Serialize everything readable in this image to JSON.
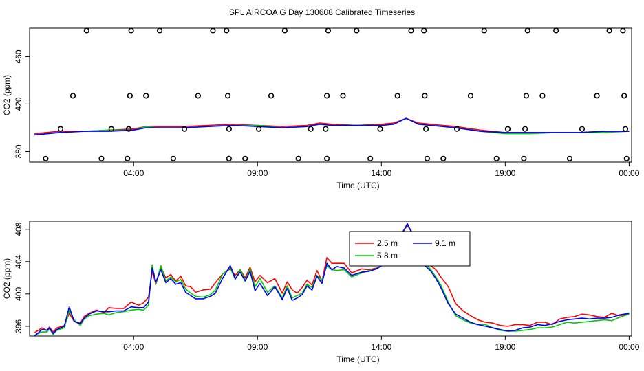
{
  "title": "SPL AIRCOA G  Day 130608  Calibrated Timeseries",
  "chart_data": [
    {
      "type": "scatter",
      "xlabel": "Time (UTC)",
      "ylabel": "CO2 (ppm)",
      "x_unit": "hours UTC",
      "xlim": [
        -0.2,
        24.1
      ],
      "ylim": [
        371,
        484
      ],
      "x_ticks": [
        {
          "v": 4,
          "label": "04:00"
        },
        {
          "v": 9,
          "label": "09:00"
        },
        {
          "v": 14,
          "label": "14:00"
        },
        {
          "v": 19,
          "label": "19:00"
        },
        {
          "v": 24,
          "label": "00:00"
        }
      ],
      "y_ticks": [
        {
          "v": 380,
          "label": "380"
        },
        {
          "v": 420,
          "label": "420"
        },
        {
          "v": 460,
          "label": "460"
        }
      ],
      "points": [
        {
          "x": 2.1,
          "y": 482
        },
        {
          "x": 3.9,
          "y": 482
        },
        {
          "x": 5.05,
          "y": 482
        },
        {
          "x": 7.2,
          "y": 482
        },
        {
          "x": 7.75,
          "y": 482
        },
        {
          "x": 10.1,
          "y": 482
        },
        {
          "x": 11.85,
          "y": 482
        },
        {
          "x": 13.0,
          "y": 482
        },
        {
          "x": 15.2,
          "y": 482
        },
        {
          "x": 15.72,
          "y": 482
        },
        {
          "x": 18.15,
          "y": 482
        },
        {
          "x": 19.9,
          "y": 482
        },
        {
          "x": 21.05,
          "y": 482
        },
        {
          "x": 23.2,
          "y": 482
        },
        {
          "x": 23.75,
          "y": 482
        },
        {
          "x": 1.55,
          "y": 427
        },
        {
          "x": 3.85,
          "y": 427
        },
        {
          "x": 4.5,
          "y": 427
        },
        {
          "x": 6.6,
          "y": 427
        },
        {
          "x": 7.8,
          "y": 427
        },
        {
          "x": 9.55,
          "y": 427
        },
        {
          "x": 11.8,
          "y": 427
        },
        {
          "x": 12.45,
          "y": 427
        },
        {
          "x": 14.65,
          "y": 427
        },
        {
          "x": 15.75,
          "y": 427
        },
        {
          "x": 17.6,
          "y": 427
        },
        {
          "x": 19.85,
          "y": 427
        },
        {
          "x": 20.5,
          "y": 427
        },
        {
          "x": 22.7,
          "y": 427
        },
        {
          "x": 23.8,
          "y": 427
        },
        {
          "x": 1.05,
          "y": 399
        },
        {
          "x": 3.1,
          "y": 399
        },
        {
          "x": 3.8,
          "y": 399
        },
        {
          "x": 6.05,
          "y": 399
        },
        {
          "x": 7.85,
          "y": 399
        },
        {
          "x": 9.05,
          "y": 399
        },
        {
          "x": 11.15,
          "y": 399
        },
        {
          "x": 11.75,
          "y": 399
        },
        {
          "x": 13.95,
          "y": 399
        },
        {
          "x": 15.8,
          "y": 399
        },
        {
          "x": 17.05,
          "y": 399
        },
        {
          "x": 19.1,
          "y": 399
        },
        {
          "x": 19.8,
          "y": 399
        },
        {
          "x": 22.1,
          "y": 399
        },
        {
          "x": 23.85,
          "y": 399
        },
        {
          "x": 0.45,
          "y": 374
        },
        {
          "x": 2.7,
          "y": 374
        },
        {
          "x": 3.75,
          "y": 374
        },
        {
          "x": 5.6,
          "y": 374
        },
        {
          "x": 7.85,
          "y": 374
        },
        {
          "x": 8.5,
          "y": 374
        },
        {
          "x": 10.65,
          "y": 374
        },
        {
          "x": 11.8,
          "y": 374
        },
        {
          "x": 13.55,
          "y": 374
        },
        {
          "x": 15.85,
          "y": 374
        },
        {
          "x": 16.5,
          "y": 374
        },
        {
          "x": 18.65,
          "y": 374
        },
        {
          "x": 19.75,
          "y": 374
        },
        {
          "x": 21.6,
          "y": 374
        },
        {
          "x": 23.9,
          "y": 374
        }
      ],
      "series": [
        {
          "color": "#ff0000",
          "x": [
            0,
            1,
            2,
            3,
            4,
            4.5,
            5,
            6,
            7,
            8,
            9,
            10,
            11,
            11.5,
            12,
            13,
            14,
            14.5,
            15,
            15.5,
            16,
            17,
            18,
            19,
            20,
            21,
            22,
            23,
            24
          ],
          "y": [
            395,
            397,
            397,
            398,
            399,
            401,
            401,
            401,
            402,
            403,
            402,
            401,
            402,
            404,
            403,
            402,
            403,
            404,
            408,
            404,
            403,
            401,
            398,
            396,
            396,
            396,
            396,
            397,
            397
          ]
        },
        {
          "color": "#00cc00",
          "x": [
            0,
            1,
            2,
            3,
            4,
            4.5,
            5,
            6,
            7,
            8,
            9,
            10,
            11,
            11.5,
            12,
            13,
            14,
            14.5,
            15,
            15.5,
            16,
            17,
            18,
            19,
            20,
            21,
            22,
            23,
            24
          ],
          "y": [
            394,
            396,
            397,
            398,
            398,
            401,
            400,
            400,
            401,
            402,
            402,
            400,
            401,
            403,
            402,
            402,
            402,
            403,
            408,
            403,
            402,
            400,
            397,
            395,
            395,
            396,
            396,
            396,
            397
          ]
        },
        {
          "color": "#0000ff",
          "x": [
            0,
            1,
            2,
            3,
            4,
            4.5,
            5,
            6,
            7,
            8,
            9,
            10,
            11,
            11.5,
            12,
            13,
            14,
            14.5,
            15,
            15.5,
            16,
            17,
            18,
            19,
            20,
            21,
            22,
            23,
            24
          ],
          "y": [
            394,
            396,
            397,
            397,
            398,
            400,
            400,
            400,
            401,
            402,
            401,
            400,
            401,
            403,
            402,
            402,
            402,
            403,
            408,
            403,
            402,
            400,
            397,
            396,
            396,
            396,
            396,
            397,
            397
          ]
        }
      ]
    },
    {
      "type": "line",
      "xlabel": "Time (UTC)",
      "ylabel": "CO2 (ppm)",
      "x_unit": "hours UTC",
      "xlim": [
        -0.2,
        24.1
      ],
      "ylim": [
        394.8,
        409.0
      ],
      "x_ticks": [
        {
          "v": 4,
          "label": "04:00"
        },
        {
          "v": 9,
          "label": "09:00"
        },
        {
          "v": 14,
          "label": "14:00"
        },
        {
          "v": 19,
          "label": "19:00"
        },
        {
          "v": 24,
          "label": "00:00"
        }
      ],
      "y_ticks": [
        {
          "v": 396,
          "label": "396"
        },
        {
          "v": 400,
          "label": "400"
        },
        {
          "v": 404,
          "label": "404"
        },
        {
          "v": 408,
          "label": "408"
        }
      ],
      "legend": {
        "position": "top-center"
      },
      "series": [
        {
          "name": "2.5 m",
          "color": "#ff0000",
          "x": [
            0,
            0.3,
            0.5,
            0.6,
            0.75,
            0.9,
            1.2,
            1.4,
            1.6,
            1.85,
            2,
            2.2,
            2.5,
            2.8,
            3.0,
            3.3,
            3.6,
            3.9,
            4.2,
            4.4,
            4.6,
            4.75,
            4.9,
            5.1,
            5.3,
            5.5,
            5.7,
            5.9,
            6.1,
            6.3,
            6.5,
            6.8,
            7.1,
            7.3,
            7.6,
            7.9,
            8.1,
            8.3,
            8.5,
            8.7,
            8.9,
            9.1,
            9.4,
            9.7,
            10.0,
            10.2,
            10.4,
            10.6,
            10.8,
            11.0,
            11.2,
            11.4,
            11.6,
            11.8,
            12.0,
            12.2,
            12.5,
            12.8,
            13.2,
            13.5,
            13.8,
            14.1,
            14.4,
            14.7,
            14.9,
            15.05,
            15.2,
            15.4,
            15.6,
            15.8,
            16.0,
            16.2,
            16.4,
            16.7,
            17.0,
            17.3,
            17.6,
            17.9,
            18.2,
            18.5,
            18.8,
            19.1,
            19.4,
            19.7,
            20.0,
            20.3,
            20.6,
            20.9,
            21.2,
            21.5,
            21.8,
            22.1,
            22.4,
            22.7,
            23.0,
            23.3,
            23.6,
            24.0
          ],
          "y": [
            395.2,
            395.8,
            395.5,
            395.9,
            395.3,
            395.8,
            396.1,
            397.6,
            396.6,
            396.4,
            397.2,
            397.6,
            398.0,
            397.7,
            398.3,
            398.2,
            398.2,
            399.0,
            398.6,
            398.9,
            399.6,
            402.8,
            401.2,
            403.3,
            402.0,
            402.4,
            401.6,
            402.2,
            401.0,
            400.9,
            400.2,
            400.5,
            400.6,
            401.4,
            402.5,
            403.1,
            402.3,
            403.0,
            402.0,
            403.3,
            401.5,
            402.3,
            401.4,
            401.9,
            400.1,
            401.5,
            400.5,
            400.1,
            400.8,
            401.7,
            401.1,
            402.9,
            401.6,
            404.5,
            403.8,
            403.8,
            403.8,
            402.6,
            403.1,
            403.0,
            403.2,
            403.6,
            405.1,
            406.8,
            407.9,
            408.4,
            407.9,
            405.1,
            404.3,
            403.5,
            403.5,
            403.0,
            402.1,
            400.9,
            398.8,
            397.9,
            397.3,
            396.8,
            396.5,
            396.4,
            396.1,
            396.0,
            396.2,
            396.2,
            396.1,
            396.5,
            396.5,
            396.2,
            396.9,
            397.1,
            397.2,
            397.5,
            397.4,
            397.2,
            397.1,
            397.6,
            397.3,
            397.5
          ]
        },
        {
          "name": "5.8 m",
          "color": "#00cc00",
          "x": [
            0,
            0.3,
            0.5,
            0.6,
            0.75,
            0.9,
            1.2,
            1.4,
            1.6,
            1.85,
            2,
            2.2,
            2.5,
            2.8,
            3.0,
            3.3,
            3.6,
            3.9,
            4.2,
            4.4,
            4.6,
            4.75,
            4.9,
            5.1,
            5.3,
            5.5,
            5.7,
            5.9,
            6.1,
            6.3,
            6.5,
            6.8,
            7.1,
            7.3,
            7.6,
            7.9,
            8.1,
            8.3,
            8.5,
            8.7,
            8.9,
            9.1,
            9.4,
            9.7,
            10.0,
            10.2,
            10.4,
            10.6,
            10.8,
            11.0,
            11.2,
            11.4,
            11.6,
            11.8,
            12.0,
            12.2,
            12.5,
            12.8,
            13.2,
            13.5,
            13.8,
            14.1,
            14.4,
            14.7,
            14.9,
            15.05,
            15.2,
            15.4,
            15.6,
            15.8,
            16.0,
            16.2,
            16.4,
            16.7,
            17.0,
            17.3,
            17.6,
            17.9,
            18.2,
            18.5,
            18.8,
            19.1,
            19.4,
            19.7,
            20.0,
            20.3,
            20.6,
            20.9,
            21.2,
            21.5,
            21.8,
            22.1,
            22.4,
            22.7,
            23.0,
            23.3,
            23.6,
            24.0
          ],
          "y": [
            394.9,
            395.3,
            395.3,
            395.7,
            395.0,
            395.5,
            395.8,
            397.9,
            396.8,
            396.1,
            396.9,
            397.3,
            397.5,
            397.6,
            397.4,
            397.7,
            397.8,
            398.0,
            398.1,
            398.0,
            398.6,
            403.6,
            401.3,
            403.5,
            401.6,
            402.1,
            401.5,
            401.8,
            400.6,
            400.1,
            399.7,
            399.6,
            399.9,
            400.5,
            402.5,
            403.2,
            401.8,
            403.0,
            401.7,
            403.1,
            400.9,
            401.9,
            400.2,
            401.0,
            399.5,
            401.0,
            399.5,
            399.8,
            400.1,
            401.2,
            400.8,
            402.3,
            401.7,
            403.5,
            403.0,
            402.9,
            403.0,
            402.1,
            402.6,
            402.9,
            403.1,
            403.8,
            405.2,
            406.5,
            407.9,
            408.6,
            407.8,
            404.4,
            403.6,
            403.7,
            403.0,
            402.1,
            401.1,
            399.0,
            397.3,
            396.8,
            396.4,
            396.2,
            396.2,
            395.8,
            395.5,
            395.4,
            395.4,
            395.5,
            395.6,
            395.8,
            395.8,
            395.9,
            396.2,
            396.5,
            396.4,
            396.5,
            396.6,
            396.7,
            396.8,
            396.7,
            397.1,
            397.5
          ]
        },
        {
          "name": "9.1 m",
          "color": "#0000ff",
          "x": [
            0,
            0.3,
            0.5,
            0.6,
            0.75,
            0.9,
            1.2,
            1.4,
            1.6,
            1.85,
            2,
            2.2,
            2.5,
            2.8,
            3.0,
            3.3,
            3.6,
            3.9,
            4.2,
            4.4,
            4.6,
            4.75,
            4.9,
            5.1,
            5.3,
            5.5,
            5.7,
            5.9,
            6.1,
            6.3,
            6.5,
            6.8,
            7.1,
            7.3,
            7.6,
            7.9,
            8.1,
            8.3,
            8.5,
            8.7,
            8.9,
            9.1,
            9.4,
            9.7,
            10.0,
            10.2,
            10.4,
            10.6,
            10.8,
            11.0,
            11.2,
            11.4,
            11.6,
            11.8,
            12.0,
            12.2,
            12.5,
            12.8,
            13.2,
            13.5,
            13.8,
            14.1,
            14.4,
            14.7,
            14.9,
            15.05,
            15.2,
            15.4,
            15.6,
            15.8,
            16.0,
            16.2,
            16.4,
            16.7,
            17.0,
            17.3,
            17.6,
            17.9,
            18.2,
            18.5,
            18.8,
            19.1,
            19.4,
            19.7,
            20.0,
            20.3,
            20.6,
            20.9,
            21.2,
            21.5,
            21.8,
            22.1,
            22.4,
            22.7,
            23.0,
            23.3,
            23.6,
            24.0
          ],
          "y": [
            394.8,
            395.6,
            395.5,
            395.8,
            395.1,
            395.6,
            396.0,
            398.4,
            396.6,
            396.3,
            397.0,
            397.5,
            397.9,
            397.8,
            397.8,
            397.9,
            397.9,
            398.4,
            398.3,
            398.3,
            399.0,
            403.2,
            401.5,
            403.0,
            401.4,
            401.9,
            401.2,
            401.4,
            400.2,
            399.8,
            399.4,
            399.4,
            399.7,
            400.1,
            402.0,
            403.5,
            401.9,
            402.7,
            401.6,
            402.8,
            400.4,
            401.3,
            399.8,
            400.9,
            399.3,
            400.7,
            399.2,
            399.5,
            399.9,
            401.0,
            400.5,
            402.2,
            401.3,
            403.8,
            403.0,
            403.4,
            403.2,
            402.3,
            402.7,
            402.8,
            403.1,
            403.7,
            405.0,
            406.8,
            407.8,
            408.7,
            407.7,
            404.6,
            403.8,
            403.4,
            402.8,
            401.9,
            400.8,
            398.8,
            397.5,
            397.0,
            396.5,
            396.2,
            396.0,
            395.8,
            395.6,
            395.4,
            395.5,
            395.8,
            395.9,
            396.2,
            396.1,
            396.3,
            396.6,
            396.8,
            396.9,
            397.0,
            396.9,
            397.0,
            397.0,
            397.1,
            397.4,
            397.6
          ]
        }
      ]
    }
  ]
}
